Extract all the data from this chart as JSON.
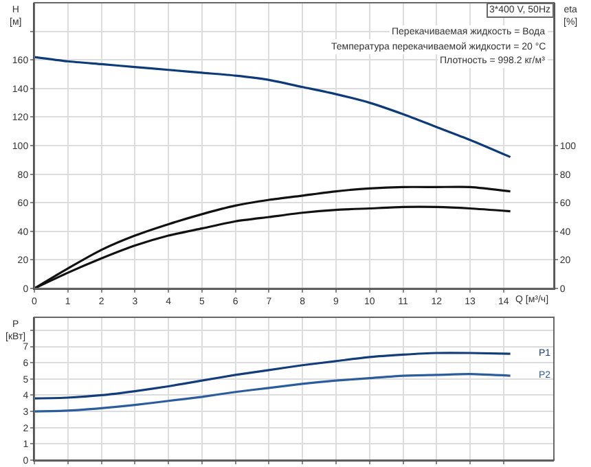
{
  "chart_data": [
    {
      "type": "line",
      "ylabel": "H\n[м]",
      "y2label": "eta\n[%]",
      "xlabel": "Q [м³/ч]",
      "annotations": [
        "3*400 V, 50Hz",
        "Перекачиваемая жидкость = Вода",
        "Температура перекачиваемой жидкости = 20 °C",
        "Плотность = 998.2 кг/м³"
      ],
      "xlim": [
        0,
        15.5
      ],
      "xticks": [
        0,
        1,
        2,
        3,
        4,
        5,
        6,
        7,
        8,
        9,
        10,
        11,
        12,
        13,
        14
      ],
      "ylim": [
        0,
        200
      ],
      "yticks": [
        0,
        20,
        40,
        60,
        80,
        100,
        120,
        140,
        160,
        {
          "value": 180,
          "label": null
        }
      ],
      "y2lim": [
        0,
        200
      ],
      "y2ticks": [
        0,
        20,
        40,
        60,
        80,
        100
      ],
      "grid": true,
      "legend": false,
      "series": [
        {
          "color": "#0d3a78",
          "x": [
            0,
            1,
            2,
            3,
            4,
            5,
            6,
            7,
            8,
            9,
            10,
            11,
            12,
            13,
            14.2
          ],
          "values": [
            162,
            159,
            157,
            155,
            153,
            151,
            149,
            146,
            141,
            136,
            130,
            122,
            113,
            104,
            92
          ]
        },
        {
          "color": "#111111",
          "axis": "y2",
          "x": [
            0,
            1,
            2,
            3,
            4,
            5,
            6,
            7,
            8,
            9,
            10,
            11,
            12,
            13,
            14.2
          ],
          "values": [
            0,
            14,
            27,
            37,
            45,
            52,
            58,
            62,
            65,
            68,
            70,
            71,
            71,
            71,
            68
          ]
        },
        {
          "color": "#111111",
          "axis": "y2",
          "x": [
            0,
            1,
            2,
            3,
            4,
            5,
            6,
            7,
            8,
            9,
            10,
            11,
            12,
            13,
            14.2
          ],
          "values": [
            0,
            11,
            21,
            30,
            37,
            42,
            47,
            50,
            53,
            55,
            56,
            57,
            57,
            56,
            54
          ]
        }
      ]
    },
    {
      "type": "line",
      "ylabel": "P\n[кВт]",
      "xlim": [
        0,
        15.5
      ],
      "xticks": [
        {
          "value": 0,
          "label": null
        },
        {
          "value": 1,
          "label": null
        },
        {
          "value": 2,
          "label": null
        },
        {
          "value": 3,
          "label": null
        },
        {
          "value": 4,
          "label": null
        },
        {
          "value": 5,
          "label": null
        },
        {
          "value": 6,
          "label": null
        },
        {
          "value": 7,
          "label": null
        },
        {
          "value": 8,
          "label": null
        },
        {
          "value": 9,
          "label": null
        },
        {
          "value": 10,
          "label": null
        },
        {
          "value": 11,
          "label": null
        },
        {
          "value": 12,
          "label": null
        },
        {
          "value": 13,
          "label": null
        },
        {
          "value": 14,
          "label": null
        }
      ],
      "ylim": [
        0,
        8.8
      ],
      "yticks": [
        0,
        1,
        2,
        3,
        4,
        5,
        6,
        7,
        {
          "value": 8,
          "label": null
        }
      ],
      "grid": true,
      "legend": false,
      "tick_labels": "y",
      "series": [
        {
          "name": "P1",
          "color": "#123d7a",
          "x": [
            0,
            1,
            2,
            3,
            4,
            5,
            6,
            7,
            8,
            9,
            10,
            11,
            12,
            13,
            14.2
          ],
          "values": [
            3.8,
            3.85,
            4.0,
            4.25,
            4.55,
            4.9,
            5.25,
            5.55,
            5.85,
            6.1,
            6.35,
            6.5,
            6.6,
            6.6,
            6.55
          ]
        },
        {
          "name": "P2",
          "color": "#2b5d9c",
          "x": [
            0,
            1,
            2,
            3,
            4,
            5,
            6,
            7,
            8,
            9,
            10,
            11,
            12,
            13,
            14.2
          ],
          "values": [
            3.0,
            3.05,
            3.2,
            3.4,
            3.65,
            3.9,
            4.2,
            4.45,
            4.7,
            4.9,
            5.05,
            5.2,
            5.25,
            5.3,
            5.2
          ]
        }
      ]
    }
  ]
}
